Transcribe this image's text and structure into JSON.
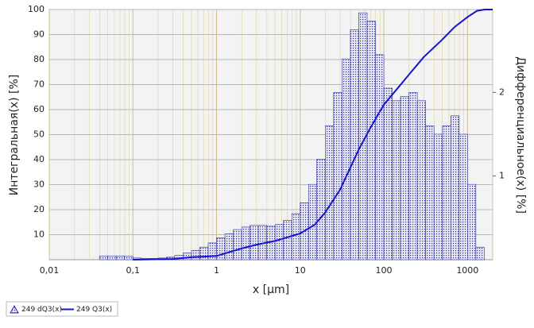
{
  "chart_data": {
    "type": "combo",
    "xlabel": "x [µm]",
    "ylabel": "Интегральная(x) [%]",
    "y2label": "Дифференциальное(x) [%]",
    "xscale": "log",
    "grid": true,
    "xlim": [
      0.01,
      2000
    ],
    "ylim": [
      0,
      100
    ],
    "y2lim": [
      0,
      2.99
    ],
    "xticks": [
      {
        "value": 0.01,
        "label": "0,01"
      },
      {
        "value": 0.1,
        "label": "0,1"
      },
      1,
      10,
      100,
      1000
    ],
    "yticks": [
      10,
      20,
      30,
      40,
      50,
      60,
      70,
      80,
      90,
      100
    ],
    "y2ticks": [
      1,
      2
    ],
    "series": [
      {
        "name": "249 dQ3(x)",
        "type": "histogram",
        "axis": "y2",
        "color": "#2a2a9a",
        "bins": [
          0.0398,
          0.0501,
          0.0631,
          0.0794,
          0.1,
          0.126,
          0.158,
          0.2,
          0.251,
          0.316,
          0.398,
          0.501,
          0.631,
          0.794,
          1,
          1.26,
          1.58,
          2,
          2.51,
          3.16,
          3.98,
          5.01,
          6.31,
          7.94,
          10,
          12.6,
          15.8,
          20,
          25.1,
          31.6,
          39.8,
          50.1,
          63.1,
          79.4,
          100,
          126,
          158,
          200,
          251,
          316,
          398,
          501,
          631,
          794,
          1000,
          1259,
          1585
        ],
        "values": [
          0.045,
          0.045,
          0.045,
          0.04,
          0.02,
          0.015,
          0.015,
          0.02,
          0.03,
          0.05,
          0.08,
          0.11,
          0.15,
          0.2,
          0.26,
          0.31,
          0.36,
          0.39,
          0.41,
          0.41,
          0.4,
          0.42,
          0.47,
          0.55,
          0.68,
          0.9,
          1.2,
          1.6,
          2.0,
          2.4,
          2.75,
          2.95,
          2.85,
          2.45,
          2.05,
          1.9,
          1.95,
          2.0,
          1.9,
          1.6,
          1.5,
          1.6,
          1.72,
          1.5,
          0.9,
          0.15
        ]
      },
      {
        "name": "249 Q3(x)",
        "type": "line",
        "color": "#1414d2",
        "x": [
          0.1,
          0.3,
          0.5,
          1,
          2,
          3,
          5,
          10,
          15,
          20,
          30,
          50,
          70,
          100,
          150,
          200,
          300,
          500,
          700,
          1000,
          1300,
          1600,
          2000
        ],
        "values": [
          0,
          0.3,
          1,
          1.5,
          4.5,
          6,
          7.5,
          10.5,
          14,
          19,
          28,
          44,
          53,
          62,
          69,
          74,
          81,
          88,
          93,
          97,
          99.5,
          100,
          100
        ]
      }
    ]
  }
}
